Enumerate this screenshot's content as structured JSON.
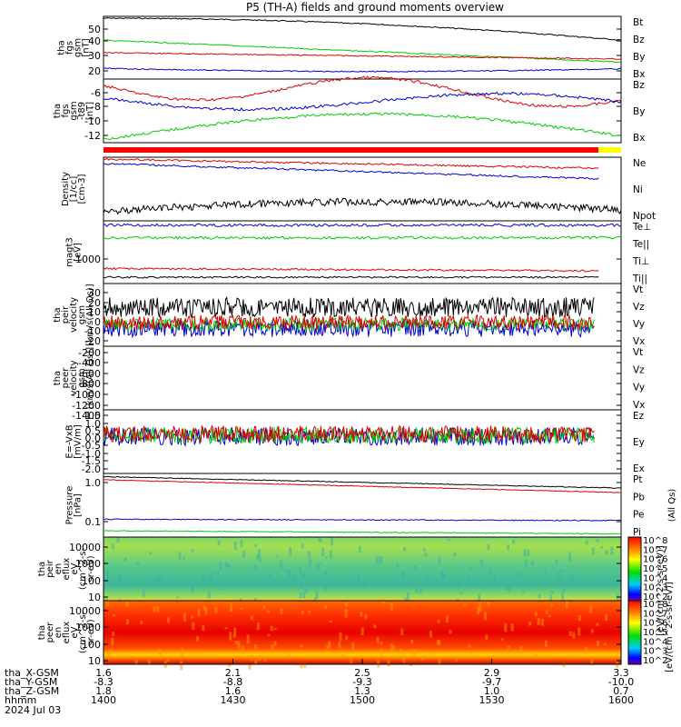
{
  "chart_data": {
    "title": "P5 (TH-A) fields and ground moments overview",
    "panels": [
      {
        "id": "fgs_gsm_top",
        "type": "line",
        "ylabel_lines": [
          "tha",
          "fgs",
          "gsm",
          "[nT]"
        ],
        "yticks": [
          "50",
          "40",
          "30",
          "20"
        ],
        "legend": [
          {
            "text": "Bt",
            "color": "#000000"
          },
          {
            "text": "Bz",
            "color": "#dd0000"
          },
          {
            "text": "By",
            "color": "#00cc00"
          },
          {
            "text": "Bx",
            "color": "#0000cc"
          }
        ]
      },
      {
        "id": "fgs_gsm_zoom",
        "type": "line",
        "ylabel_lines": [
          "tha",
          "fgs",
          "gsm",
          "-t89"
        ],
        "ylabel_unit": "[nT]",
        "yticks": [
          "-6",
          "-8",
          "-10",
          "-12"
        ],
        "legend": [
          {
            "text": "Bz",
            "color": "#dd0000"
          },
          {
            "text": "By",
            "color": "#00cc00"
          },
          {
            "text": "Bx",
            "color": "#0000cc"
          }
        ]
      },
      {
        "id": "density",
        "type": "line",
        "ylabel_lines": [
          "Density",
          "[1/cc]",
          "[cm-3]"
        ],
        "yticks": [],
        "legend": [
          {
            "text": "Ne",
            "color": "#dd0000"
          },
          {
            "text": "Ni",
            "color": "#000000"
          },
          {
            "text": "Npot",
            "color": "#0000cc"
          }
        ]
      },
      {
        "id": "temperature",
        "type": "line",
        "ylabel_lines": [
          "magt3",
          "[eV]"
        ],
        "yticks": [
          "1000"
        ],
        "legend": [
          {
            "text": "Te⊥",
            "color": "#dd0000"
          },
          {
            "text": "Te||",
            "color": "#000000"
          },
          {
            "text": "Ti⊥",
            "color": "#dd0000"
          },
          {
            "text": "Ti||",
            "color": "#00cc00"
          }
        ]
      },
      {
        "id": "peir_velocity",
        "type": "line",
        "ylabel_lines": [
          "tha",
          "peir",
          "velocity",
          "gsm",
          "[km/s(All Qs)]"
        ],
        "yticks": [
          "30",
          "20",
          "10",
          "0",
          "-10",
          "-20"
        ],
        "legend": [
          {
            "text": "Vt",
            "color": "#000000"
          },
          {
            "text": "Vz",
            "color": "#dd0000"
          },
          {
            "text": "Vy",
            "color": "#00cc00"
          },
          {
            "text": "Vx",
            "color": "#0000cc"
          }
        ]
      },
      {
        "id": "peer_velocity",
        "type": "line",
        "ylabel_lines": [
          "tha",
          "peer",
          "velocity",
          "gsm",
          "[km/s(All Qs)]"
        ],
        "yticks": [
          "-200",
          "-400",
          "-600",
          "-800",
          "-1000",
          "-1200",
          "-1400"
        ],
        "legend": [
          {
            "text": "Vt",
            "color": "#000000"
          },
          {
            "text": "Vz",
            "color": "#dd0000"
          },
          {
            "text": "Vy",
            "color": "#00cc00"
          },
          {
            "text": "Vx",
            "color": "#0000cc"
          }
        ]
      },
      {
        "id": "efield",
        "type": "line",
        "ylabel_lines": [
          "E=-VxB",
          "[mV/m]"
        ],
        "yticks": [
          "1.5",
          "1.0",
          "0.5",
          "0.0",
          "-0.5",
          "-1.0",
          "-1.5",
          "-2.0"
        ],
        "legend": [
          {
            "text": "Ez",
            "color": "#dd0000"
          },
          {
            "text": "Ey",
            "color": "#00cc00"
          },
          {
            "text": "Ex",
            "color": "#0000cc"
          }
        ]
      },
      {
        "id": "pressure",
        "type": "line",
        "ylabel_lines": [
          "Pressure",
          "[nPa]"
        ],
        "yticks": [
          "1.0",
          "0.1"
        ],
        "legend": [
          {
            "text": "Pt",
            "color": "#000000"
          },
          {
            "text": "Pb",
            "color": "#dd0000"
          },
          {
            "text": "Pe",
            "color": "#00cc00"
          },
          {
            "text": "Pi",
            "color": "#0000cc"
          }
        ],
        "side_label": "(All Qs)"
      },
      {
        "id": "peir_spec",
        "type": "heatmap",
        "ylabel_lines": [
          "tha",
          "peir",
          "en",
          "eflux",
          "eV",
          "(cm^2-s-",
          "sr-eV)"
        ],
        "yticks": [
          "10000",
          "1000",
          "100",
          "10"
        ],
        "colorbar_ticks": [
          "10^8",
          "10^7",
          "10^6",
          "10^5",
          "10^4",
          "10^3",
          "10^2"
        ]
      },
      {
        "id": "peer_spec",
        "type": "heatmap",
        "ylabel_lines": [
          "tha",
          "peer",
          "en",
          "eflux",
          "eV",
          "(cm^2-s-",
          "sr-eV)"
        ],
        "yticks": [
          "10000",
          "1000",
          "100",
          "10"
        ],
        "colorbar_ticks": [
          "10^8",
          "10^7",
          "10^6",
          "10^5",
          "10^4",
          "10^3",
          "10^2"
        ]
      }
    ],
    "colorbar_label": "[eV/(cm^2-s-sr-eV)]",
    "colorbar_label2": "[eV/(cm^2-s-sr-eV)]",
    "xaxis": {
      "row_labels": [
        "tha_X-GSM",
        "tha_Y-GSM",
        "tha_Z-GSM",
        "hhmm",
        "2024 Jul 03"
      ],
      "ticks": [
        {
          "x": "1.6",
          "y": "-8.3",
          "z": "1.8",
          "hhmm": "1400"
        },
        {
          "x": "2.1",
          "y": "-8.8",
          "z": "1.6",
          "hhmm": "1430"
        },
        {
          "x": "2.5",
          "y": "-9.3",
          "z": "1.3",
          "hhmm": "1500"
        },
        {
          "x": "2.9",
          "y": "-9.7",
          "z": "1.0",
          "hhmm": "1530"
        },
        {
          "x": "3.3",
          "y": "-10.0",
          "z": "0.7",
          "hhmm": "1600"
        }
      ]
    }
  }
}
